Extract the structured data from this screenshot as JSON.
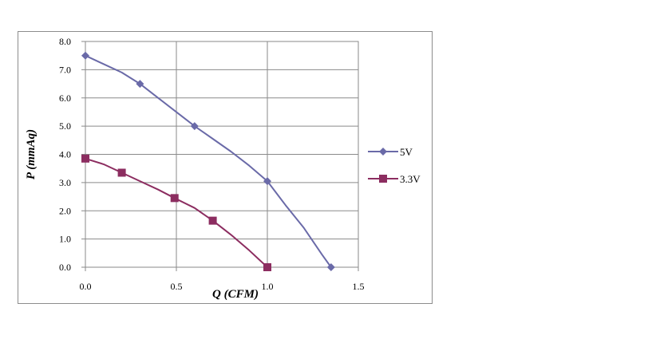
{
  "chart_data": {
    "type": "line",
    "title": "",
    "xlabel": "Q (CFM)",
    "ylabel": "P (mmAq)",
    "xlim": [
      0,
      1.5
    ],
    "ylim": [
      0,
      8
    ],
    "x_ticks": [
      0,
      0.5,
      1.0,
      1.5
    ],
    "x_tick_labels": [
      "0.0",
      "0.5",
      "1.0",
      "1.5"
    ],
    "y_ticks": [
      0,
      1,
      2,
      3,
      4,
      5,
      6,
      7,
      8
    ],
    "y_tick_labels": [
      "0.0",
      "1.0",
      "2.0",
      "3.0",
      "4.0",
      "5.0",
      "6.0",
      "7.0",
      "8.0"
    ],
    "grid": true,
    "legend_position": "right",
    "series": [
      {
        "name": "5V",
        "color": "#6a6aa8",
        "marker": "diamond",
        "points": [
          [
            0.0,
            7.5
          ],
          [
            0.3,
            6.5
          ],
          [
            0.6,
            5.0
          ],
          [
            1.0,
            3.05
          ],
          [
            1.35,
            0.0
          ]
        ],
        "curve": [
          [
            0.0,
            7.5
          ],
          [
            0.1,
            7.2
          ],
          [
            0.2,
            6.9
          ],
          [
            0.3,
            6.5
          ],
          [
            0.4,
            6.0
          ],
          [
            0.5,
            5.5
          ],
          [
            0.6,
            5.0
          ],
          [
            0.7,
            4.55
          ],
          [
            0.8,
            4.1
          ],
          [
            0.9,
            3.6
          ],
          [
            1.0,
            3.05
          ],
          [
            1.1,
            2.2
          ],
          [
            1.2,
            1.4
          ],
          [
            1.3,
            0.45
          ],
          [
            1.35,
            0.0
          ]
        ]
      },
      {
        "name": "3.3V",
        "color": "#8c2d60",
        "marker": "square",
        "points": [
          [
            0.0,
            3.85
          ],
          [
            0.2,
            3.35
          ],
          [
            0.49,
            2.45
          ],
          [
            0.7,
            1.65
          ],
          [
            1.0,
            0.0
          ]
        ],
        "curve": [
          [
            0.0,
            3.85
          ],
          [
            0.1,
            3.65
          ],
          [
            0.2,
            3.35
          ],
          [
            0.3,
            3.05
          ],
          [
            0.4,
            2.75
          ],
          [
            0.49,
            2.45
          ],
          [
            0.6,
            2.1
          ],
          [
            0.7,
            1.65
          ],
          [
            0.8,
            1.15
          ],
          [
            0.9,
            0.6
          ],
          [
            1.0,
            0.0
          ]
        ]
      }
    ]
  }
}
